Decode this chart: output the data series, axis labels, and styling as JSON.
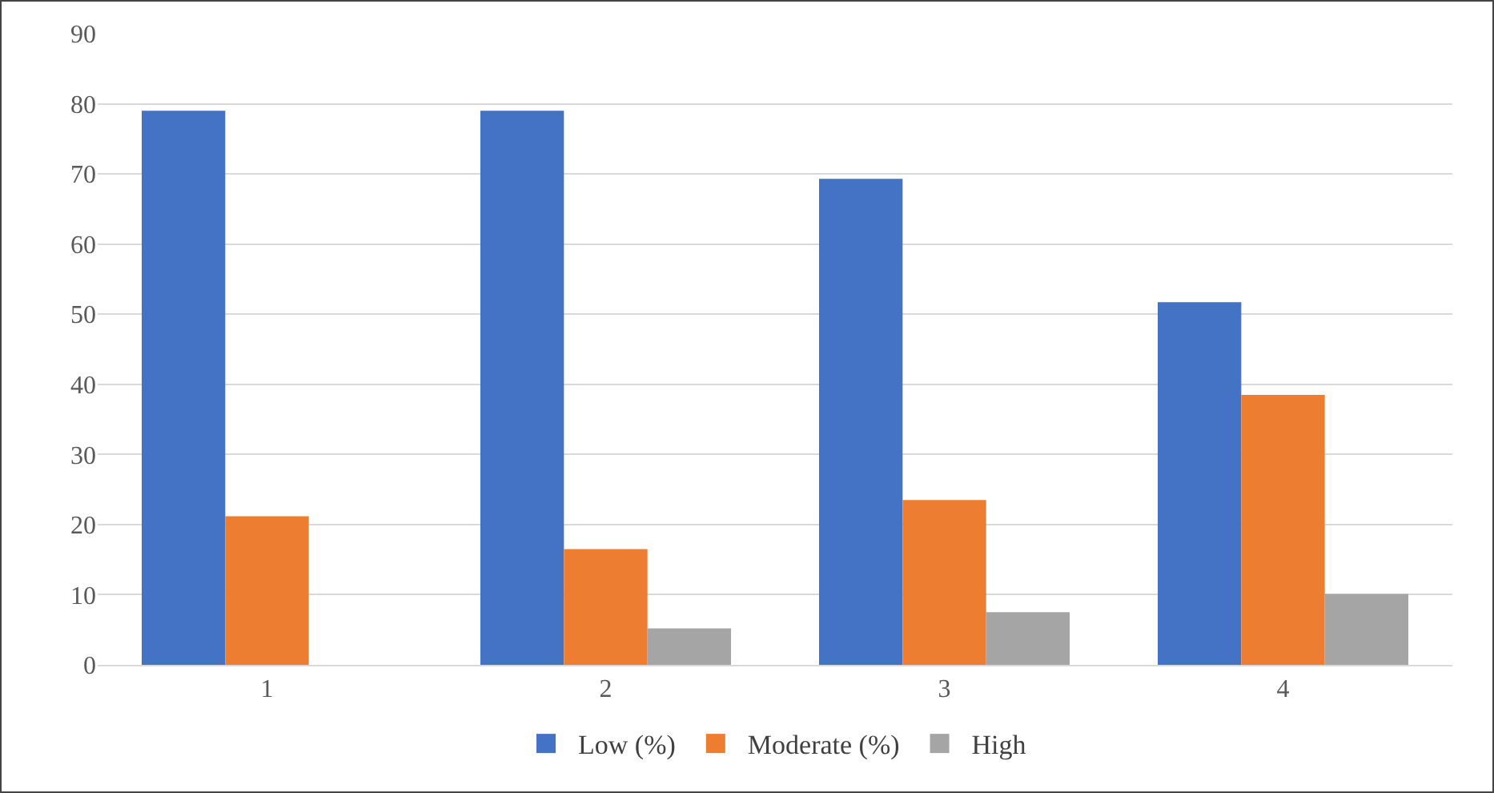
{
  "chart_data": {
    "type": "bar",
    "categories": [
      "1",
      "2",
      "3",
      "4"
    ],
    "series": [
      {
        "name": "Low (%)",
        "color": "#4472c4",
        "values": [
          79,
          79,
          69.3,
          51.7
        ]
      },
      {
        "name": "Moderate (%)",
        "color": "#ed7d31",
        "values": [
          21.2,
          16.5,
          23.5,
          38.5
        ]
      },
      {
        "name": "High",
        "color": "#a5a5a5",
        "values": [
          0,
          5.2,
          7.5,
          10.1
        ]
      }
    ],
    "ylim": [
      0,
      90
    ],
    "yticks": [
      0,
      10,
      20,
      30,
      40,
      50,
      60,
      70,
      80,
      90
    ],
    "grid": "y",
    "legend": "bottom"
  }
}
